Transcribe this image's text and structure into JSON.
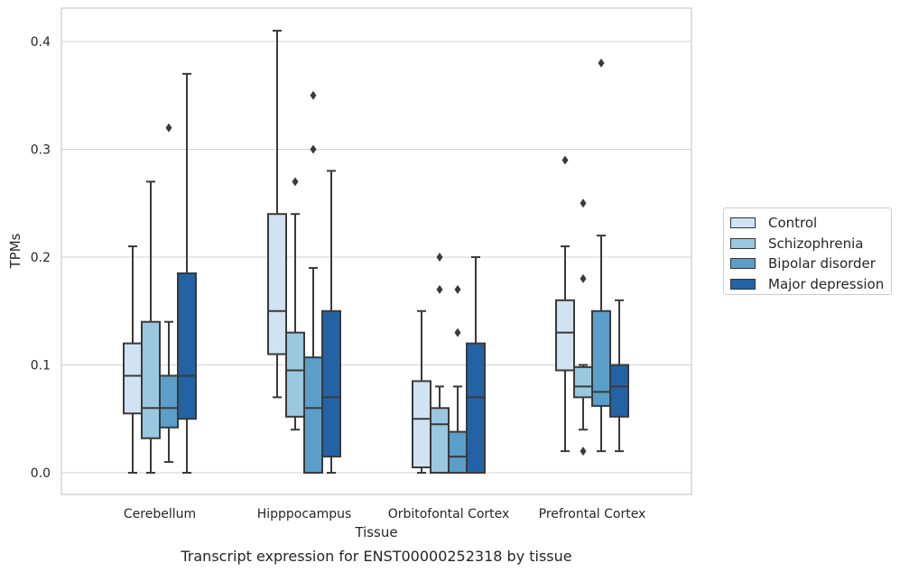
{
  "chart_data": {
    "type": "box",
    "xlabel": "Tissue",
    "ylabel": "TPMs",
    "caption": "Transcript expression for ENST00000252318 by tissue",
    "ylim": [
      -0.02,
      0.43
    ],
    "yticks": [
      0.0,
      0.1,
      0.2,
      0.3,
      0.4
    ],
    "ytick_labels": [
      "0.0",
      "0.1",
      "0.2",
      "0.3",
      "0.4"
    ],
    "grid": "horizontal",
    "legend_position": "right",
    "categories": [
      "Cerebellum",
      "Hipppocampus",
      "Orbitofontal Cortex",
      "Prefrontal Cortex"
    ],
    "series": [
      {
        "name": "Control",
        "color": "#d1e2f2",
        "boxes": [
          {
            "q1": 0.055,
            "median": 0.09,
            "q3": 0.12,
            "whisker_low": 0.0,
            "whisker_high": 0.21,
            "outliers": []
          },
          {
            "q1": 0.11,
            "median": 0.15,
            "q3": 0.24,
            "whisker_low": 0.07,
            "whisker_high": 0.41,
            "outliers": []
          },
          {
            "q1": 0.005,
            "median": 0.05,
            "q3": 0.085,
            "whisker_low": 0.0,
            "whisker_high": 0.15,
            "outliers": []
          },
          {
            "q1": 0.095,
            "median": 0.13,
            "q3": 0.16,
            "whisker_low": 0.02,
            "whisker_high": 0.21,
            "outliers": [
              0.29
            ]
          }
        ]
      },
      {
        "name": "Schizophrenia",
        "color": "#9ac8e0",
        "boxes": [
          {
            "q1": 0.032,
            "median": 0.06,
            "q3": 0.14,
            "whisker_low": 0.0,
            "whisker_high": 0.27,
            "outliers": []
          },
          {
            "q1": 0.052,
            "median": 0.095,
            "q3": 0.13,
            "whisker_low": 0.04,
            "whisker_high": 0.24,
            "outliers": [
              0.27
            ]
          },
          {
            "q1": 0.0,
            "median": 0.045,
            "q3": 0.06,
            "whisker_low": 0.0,
            "whisker_high": 0.08,
            "outliers": [
              0.2,
              0.17
            ]
          },
          {
            "q1": 0.07,
            "median": 0.08,
            "q3": 0.098,
            "whisker_low": 0.04,
            "whisker_high": 0.1,
            "outliers": [
              0.25,
              0.18,
              0.02
            ]
          }
        ]
      },
      {
        "name": "Bipolar disorder",
        "color": "#5a9ec9",
        "boxes": [
          {
            "q1": 0.042,
            "median": 0.06,
            "q3": 0.09,
            "whisker_low": 0.01,
            "whisker_high": 0.14,
            "outliers": [
              0.32
            ]
          },
          {
            "q1": 0.0,
            "median": 0.06,
            "q3": 0.107,
            "whisker_low": 0.0,
            "whisker_high": 0.19,
            "outliers": [
              0.35,
              0.3
            ]
          },
          {
            "q1": 0.0,
            "median": 0.015,
            "q3": 0.038,
            "whisker_low": 0.0,
            "whisker_high": 0.08,
            "outliers": [
              0.17,
              0.13
            ]
          },
          {
            "q1": 0.062,
            "median": 0.075,
            "q3": 0.15,
            "whisker_low": 0.02,
            "whisker_high": 0.22,
            "outliers": [
              0.38
            ]
          }
        ]
      },
      {
        "name": "Major depression",
        "color": "#2462a6",
        "boxes": [
          {
            "q1": 0.05,
            "median": 0.09,
            "q3": 0.185,
            "whisker_low": 0.0,
            "whisker_high": 0.37,
            "outliers": []
          },
          {
            "q1": 0.015,
            "median": 0.07,
            "q3": 0.15,
            "whisker_low": 0.0,
            "whisker_high": 0.28,
            "outliers": []
          },
          {
            "q1": 0.0,
            "median": 0.07,
            "q3": 0.12,
            "whisker_low": 0.0,
            "whisker_high": 0.2,
            "outliers": []
          },
          {
            "q1": 0.052,
            "median": 0.08,
            "q3": 0.1,
            "whisker_low": 0.02,
            "whisker_high": 0.16,
            "outliers": []
          }
        ]
      }
    ]
  }
}
